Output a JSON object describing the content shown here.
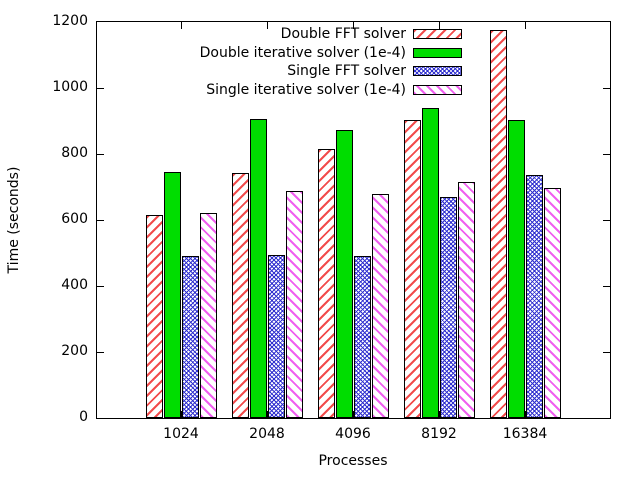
{
  "chart_data": {
    "type": "bar",
    "title": "",
    "xlabel": "Processes",
    "ylabel": "Time (seconds)",
    "categories": [
      "1024",
      "2048",
      "4096",
      "8192",
      "16384"
    ],
    "series": [
      {
        "name": "Double FFT solver",
        "color": "#f24c4c",
        "pattern": "diag-forward",
        "values": [
          615,
          743,
          815,
          903,
          1175
        ]
      },
      {
        "name": "Double iterative solver (1e-4)",
        "color": "#00dd00",
        "pattern": "solid",
        "values": [
          745,
          905,
          873,
          939,
          903
        ]
      },
      {
        "name": "Single FFT solver",
        "color": "#3030cf",
        "pattern": "crosshatch",
        "values": [
          492,
          494,
          491,
          671,
          737
        ]
      },
      {
        "name": "Single iterative solver (1e-4)",
        "color": "#f05ff0",
        "pattern": "diag-back",
        "values": [
          620,
          688,
          679,
          715,
          697
        ]
      }
    ],
    "ylim": [
      0,
      1200
    ],
    "ytick_step": 200,
    "grid": false,
    "legend_position": "top-right-inside",
    "bar_outline_color": "#000000",
    "background_color": "#ffffff"
  }
}
